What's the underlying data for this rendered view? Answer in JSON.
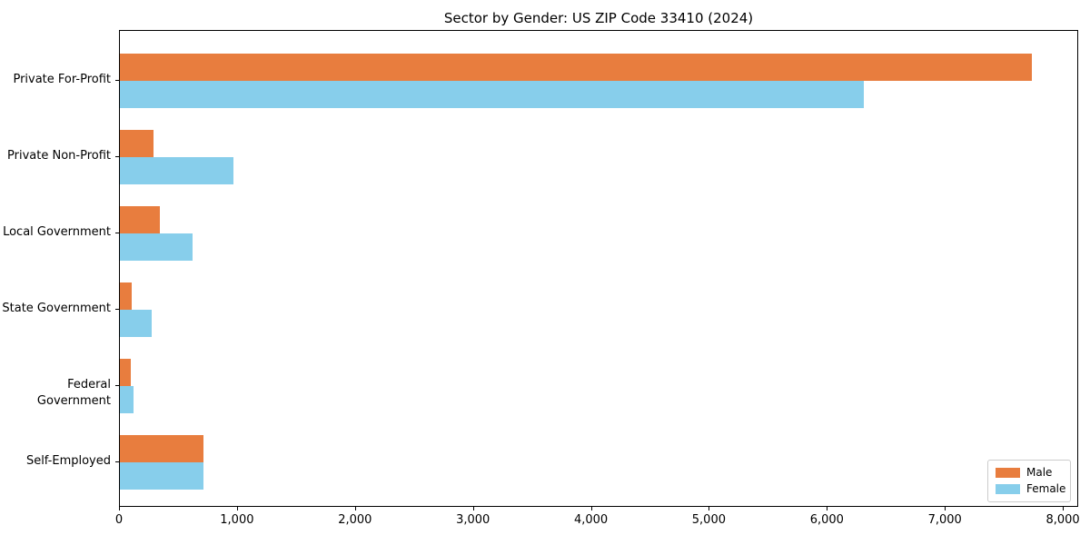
{
  "title": "Sector by Gender: US ZIP Code 33410 (2024)",
  "chart_data": {
    "type": "bar",
    "orientation": "horizontal",
    "title": "Sector by Gender: US ZIP Code 33410 (2024)",
    "categories": [
      "Private For-Profit",
      "Private Non-Profit",
      "Local Government",
      "State Government",
      "Federal Government",
      "Self-Employed"
    ],
    "series": [
      {
        "name": "Male",
        "color": "#e87d3e",
        "values": [
          7730,
          285,
          340,
          100,
          90,
          705
        ]
      },
      {
        "name": "Female",
        "color": "#87ceeb",
        "values": [
          6305,
          965,
          615,
          270,
          115,
          710
        ]
      }
    ],
    "xlabel": "",
    "ylabel": "",
    "xlim": [
      0,
      8130
    ],
    "x_ticks": [
      0,
      1000,
      2000,
      3000,
      4000,
      5000,
      6000,
      7000,
      8000
    ],
    "x_tick_labels": [
      "0",
      "1,000",
      "2,000",
      "3,000",
      "4,000",
      "5,000",
      "6,000",
      "7,000",
      "8,000"
    ],
    "grid": false,
    "legend_position": "lower right",
    "background_color": "#ffffff",
    "spine_color": "#000000",
    "legend_border_color": "#cccccc"
  }
}
